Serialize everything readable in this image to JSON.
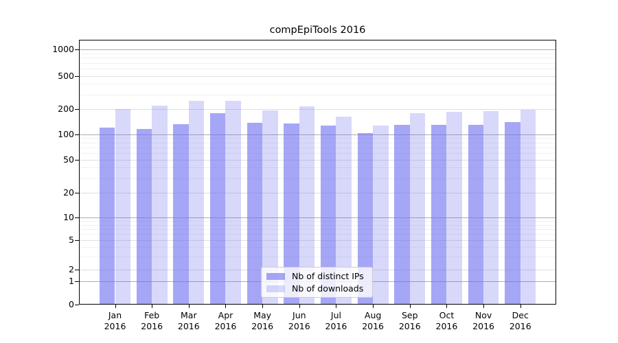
{
  "chart_data": {
    "type": "bar",
    "title": "compEpiTools 2016",
    "categories": [
      "Jan 2016",
      "Feb 2016",
      "Mar 2016",
      "Apr 2016",
      "May 2016",
      "Jun 2016",
      "Jul 2016",
      "Aug 2016",
      "Sep 2016",
      "Oct 2016",
      "Nov 2016",
      "Dec 2016"
    ],
    "series": [
      {
        "name": "Nb of distinct IPs",
        "color": "rgba(112,112,240,0.62)",
        "values": [
          120,
          115,
          133,
          180,
          138,
          135,
          126,
          103,
          130,
          129,
          130,
          141
        ]
      },
      {
        "name": "Nb of downloads",
        "color": "rgba(112,112,240,0.27)",
        "values": [
          200,
          220,
          250,
          252,
          194,
          215,
          162,
          127,
          180,
          186,
          188,
          195
        ]
      }
    ],
    "y_axis": {
      "scale": "log",
      "ticks": [
        0,
        1,
        2,
        5,
        10,
        20,
        50,
        100,
        200,
        500,
        1000
      ],
      "range": [
        0,
        1300
      ]
    },
    "legend": {
      "position": "inside lower center",
      "entries": [
        "Nb of distinct IPs",
        "Nb of downloads"
      ]
    },
    "grid": true
  }
}
